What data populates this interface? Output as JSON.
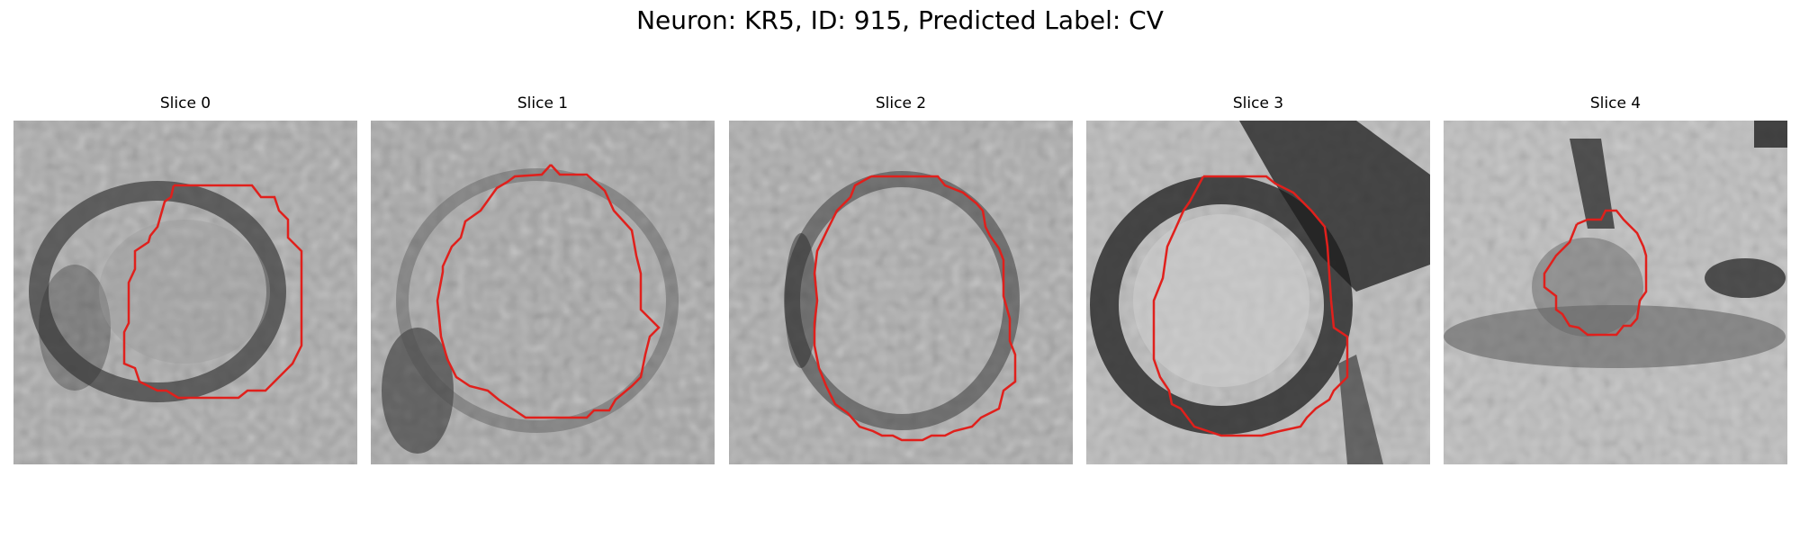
{
  "figure": {
    "suptitle": "Neuron: KR5, ID: 915, Predicted Label: CV"
  },
  "panels": [
    {
      "title": "Slice 0",
      "contour_color": "#e0201c"
    },
    {
      "title": "Slice 1",
      "contour_color": "#e0201c"
    },
    {
      "title": "Slice 2",
      "contour_color": "#e0201c"
    },
    {
      "title": "Slice 3",
      "contour_color": "#e0201c"
    },
    {
      "title": "Slice 4",
      "contour_color": "#e0201c"
    }
  ]
}
